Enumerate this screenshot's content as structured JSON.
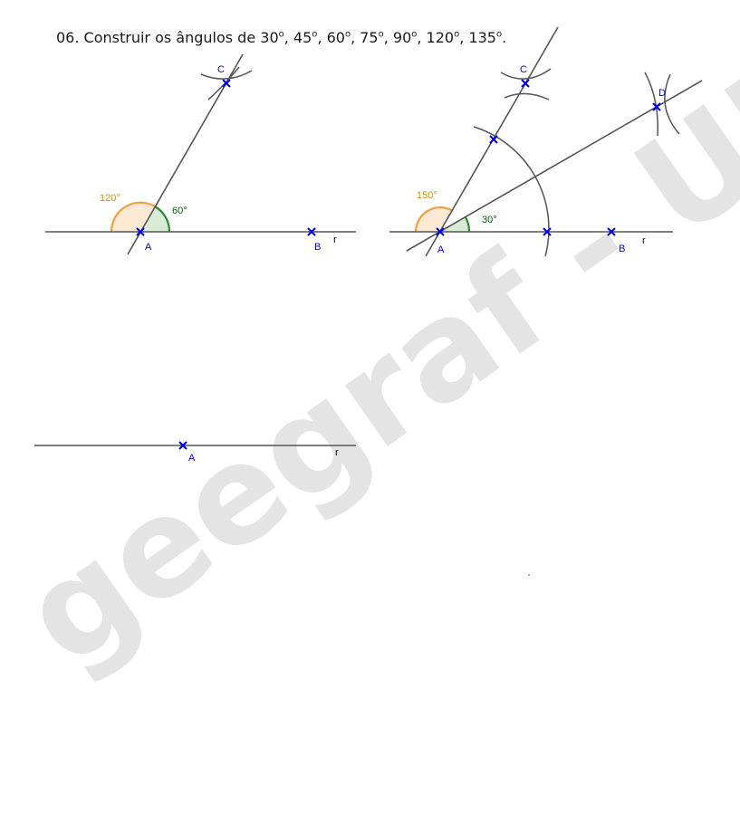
{
  "title": {
    "prefix": "06.  Construir os ângulos de 30",
    "parts": [
      ", 45",
      ", 60",
      ", 75",
      ", 90",
      ", 120",
      ", 135"
    ],
    "degree": "o",
    "suffix": "."
  },
  "watermark": "geegraf - UFPR",
  "figure1": {
    "points": {
      "A": "A",
      "B": "B",
      "C": "C"
    },
    "line": "r",
    "angle_small": "60°",
    "angle_large": "120°"
  },
  "figure2": {
    "points": {
      "A": "A",
      "B": "B",
      "C": "C",
      "D": "D"
    },
    "line": "r",
    "angle_small": "30°",
    "angle_large": "150°"
  },
  "figure3": {
    "points": {
      "A": "A"
    },
    "line": "r"
  },
  "colors": {
    "line": "#555555",
    "point": "#0000ee",
    "angle_large": "#f0a040",
    "angle_small": "#2e8b2e"
  }
}
